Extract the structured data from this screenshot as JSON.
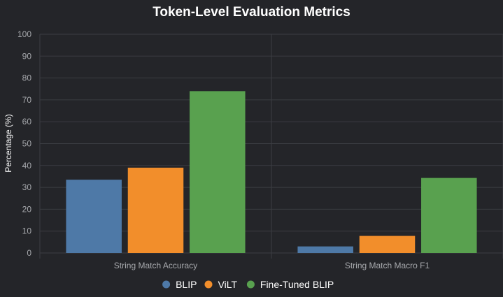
{
  "chart_data": {
    "type": "bar",
    "title": "Token-Level Evaluation Metrics",
    "xlabel": "",
    "ylabel": "Percentage (%)",
    "ylim": [
      0,
      100
    ],
    "yticks": [
      "0",
      "10",
      "20",
      "30",
      "40",
      "50",
      "60",
      "70",
      "80",
      "90",
      "100"
    ],
    "categories": [
      "String Match Accuracy",
      "String Match Macro F1"
    ],
    "series": [
      {
        "name": "BLIP",
        "color": "#4e79a7",
        "values": [
          33.5,
          3.0
        ]
      },
      {
        "name": "ViLT",
        "color": "#f28e2b",
        "values": [
          39.0,
          7.8
        ]
      },
      {
        "name": "Fine-Tuned BLIP",
        "color": "#59a14f",
        "values": [
          74.0,
          34.3
        ]
      }
    ],
    "grid": true,
    "legend_position": "bottom"
  }
}
